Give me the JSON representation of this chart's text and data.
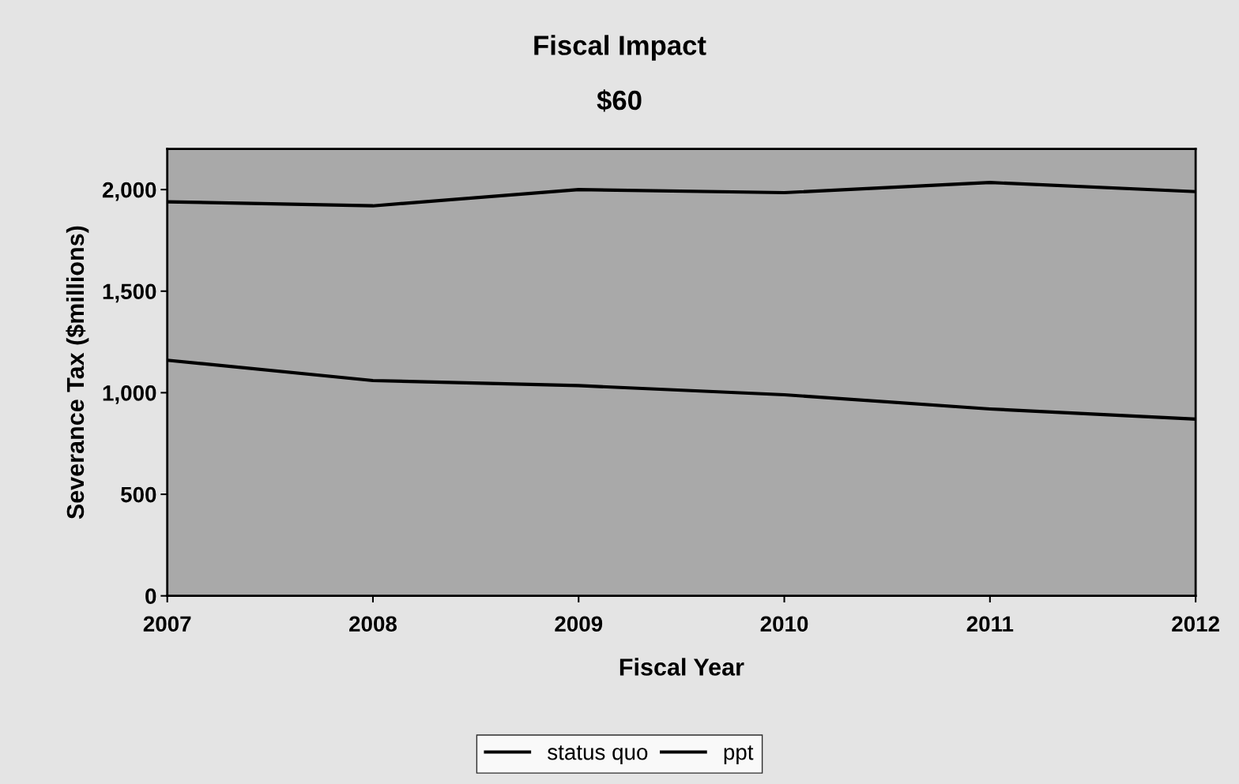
{
  "chart_data": {
    "type": "line",
    "title": "Fiscal Impact",
    "subtitle": "$60",
    "xlabel": "Fiscal Year",
    "ylabel": "Severance Tax ($millions)",
    "x": [
      2007,
      2008,
      2009,
      2010,
      2011,
      2012
    ],
    "series": [
      {
        "name": "status quo",
        "color": "#000000",
        "values": [
          1160,
          1060,
          1035,
          990,
          920,
          870
        ]
      },
      {
        "name": "ppt",
        "color": "#000000",
        "values": [
          1940,
          1920,
          2000,
          1985,
          2035,
          1990
        ]
      }
    ],
    "xlim": [
      2007,
      2012
    ],
    "xticks": [
      2007,
      2008,
      2009,
      2010,
      2011,
      2012
    ],
    "ylim": [
      0,
      2200
    ],
    "yticks": [
      0,
      {
        "value": 500,
        "label": "500"
      },
      {
        "value": 1000,
        "label": "1,000"
      },
      {
        "value": 1500,
        "label": "1,500"
      },
      {
        "value": 2000,
        "label": "2,000"
      }
    ],
    "grid": false,
    "legend": "bottom",
    "marker": "none",
    "line_style": "solid"
  }
}
